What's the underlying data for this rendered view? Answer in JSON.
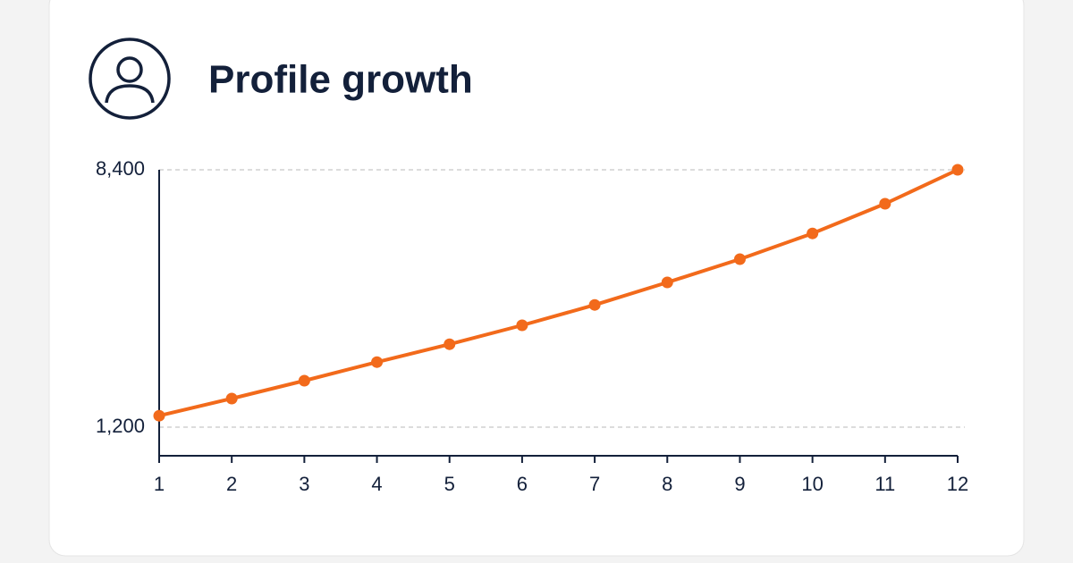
{
  "chart_data": {
    "type": "line",
    "title": "Profile growth",
    "x": [
      1,
      2,
      3,
      4,
      5,
      6,
      7,
      8,
      9,
      10,
      11,
      12
    ],
    "values": [
      1520,
      2000,
      2500,
      3020,
      3520,
      4050,
      4620,
      5250,
      5900,
      6620,
      7450,
      8400
    ],
    "color": "#f26a1b",
    "xlim": [
      1,
      12
    ],
    "xticks": [
      1,
      2,
      3,
      4,
      5,
      6,
      7,
      8,
      9,
      10,
      11,
      12
    ],
    "ylim": [
      400,
      8400
    ],
    "yticks": [
      {
        "value": 1200,
        "label": "1,200"
      },
      {
        "value": 8400,
        "label": "8,400"
      }
    ],
    "grid": true
  }
}
